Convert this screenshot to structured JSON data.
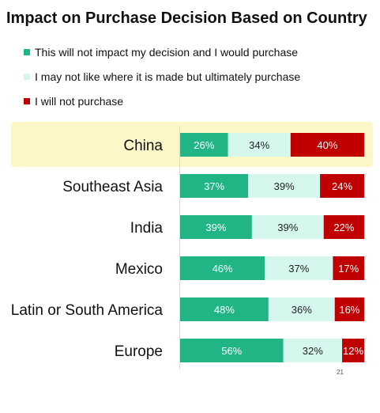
{
  "chart_data": {
    "type": "bar",
    "orientation": "horizontal",
    "stacked": true,
    "percent": true,
    "title": "Impact on Purchase Decision Based on Country",
    "categories": [
      "China",
      "Southeast Asia",
      "India",
      "Mexico",
      "Latin or South America",
      "Europe"
    ],
    "series": [
      {
        "name": "This will not impact my decision and I would purchase",
        "color": "#21b484",
        "label_color": "#ffffff",
        "values": [
          26,
          37,
          39,
          46,
          48,
          56
        ]
      },
      {
        "name": "I may not like where it is made but ultimately purchase",
        "color": "#d6f7ee",
        "label_color": "#222222",
        "values": [
          34,
          39,
          39,
          37,
          36,
          32
        ]
      },
      {
        "name": "I will not purchase",
        "color": "#c00000",
        "label_color": "#ffffff",
        "values": [
          40,
          24,
          22,
          17,
          16,
          12
        ]
      }
    ],
    "highlighted_category": "China",
    "legend_position": "top-left",
    "grid": false
  },
  "page_number": "21"
}
